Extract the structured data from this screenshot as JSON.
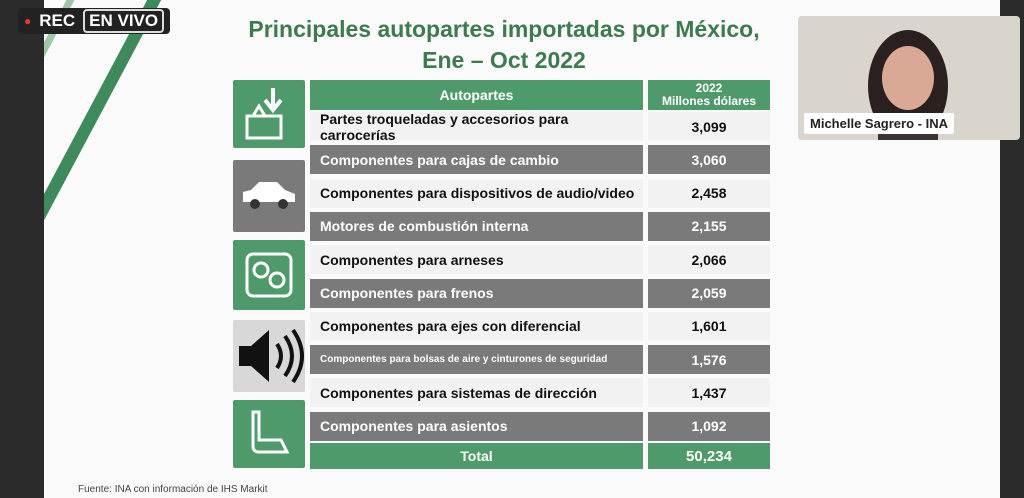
{
  "stream": {
    "rec": "REC",
    "live": "EN VIVO"
  },
  "slide": {
    "title": [
      "Principales autopartes importadas por México,",
      "Ene – Oct 2022"
    ],
    "table": {
      "header": [
        "Autopartes",
        "2022",
        "Millones dólares"
      ],
      "rows": [
        [
          "Partes troqueladas y accesorios para carrocerías",
          "3,099"
        ],
        [
          "Componentes para cajas de cambio",
          "3,060"
        ],
        [
          "Componentes para dispositivos de audio/video",
          "2,458"
        ],
        [
          "Motores de combustión interna",
          "2,155"
        ],
        [
          "Componentes para arneses",
          "2,066"
        ],
        [
          "Componentes para frenos",
          "2,059"
        ],
        [
          "Componentes para ejes con diferencial",
          "1,601"
        ],
        [
          "Componentes para bolsas de aire y cinturones de seguridad",
          "1,576"
        ],
        [
          "Componentes para sistemas de dirección",
          "1,437"
        ],
        [
          "Componentes para asientos",
          "1,092"
        ]
      ],
      "total": [
        "Total",
        "50,234"
      ]
    },
    "source": "Fuente: INA con información de IHS Markit"
  },
  "participant": {
    "name": "Michelle Sagrero - INA"
  }
}
